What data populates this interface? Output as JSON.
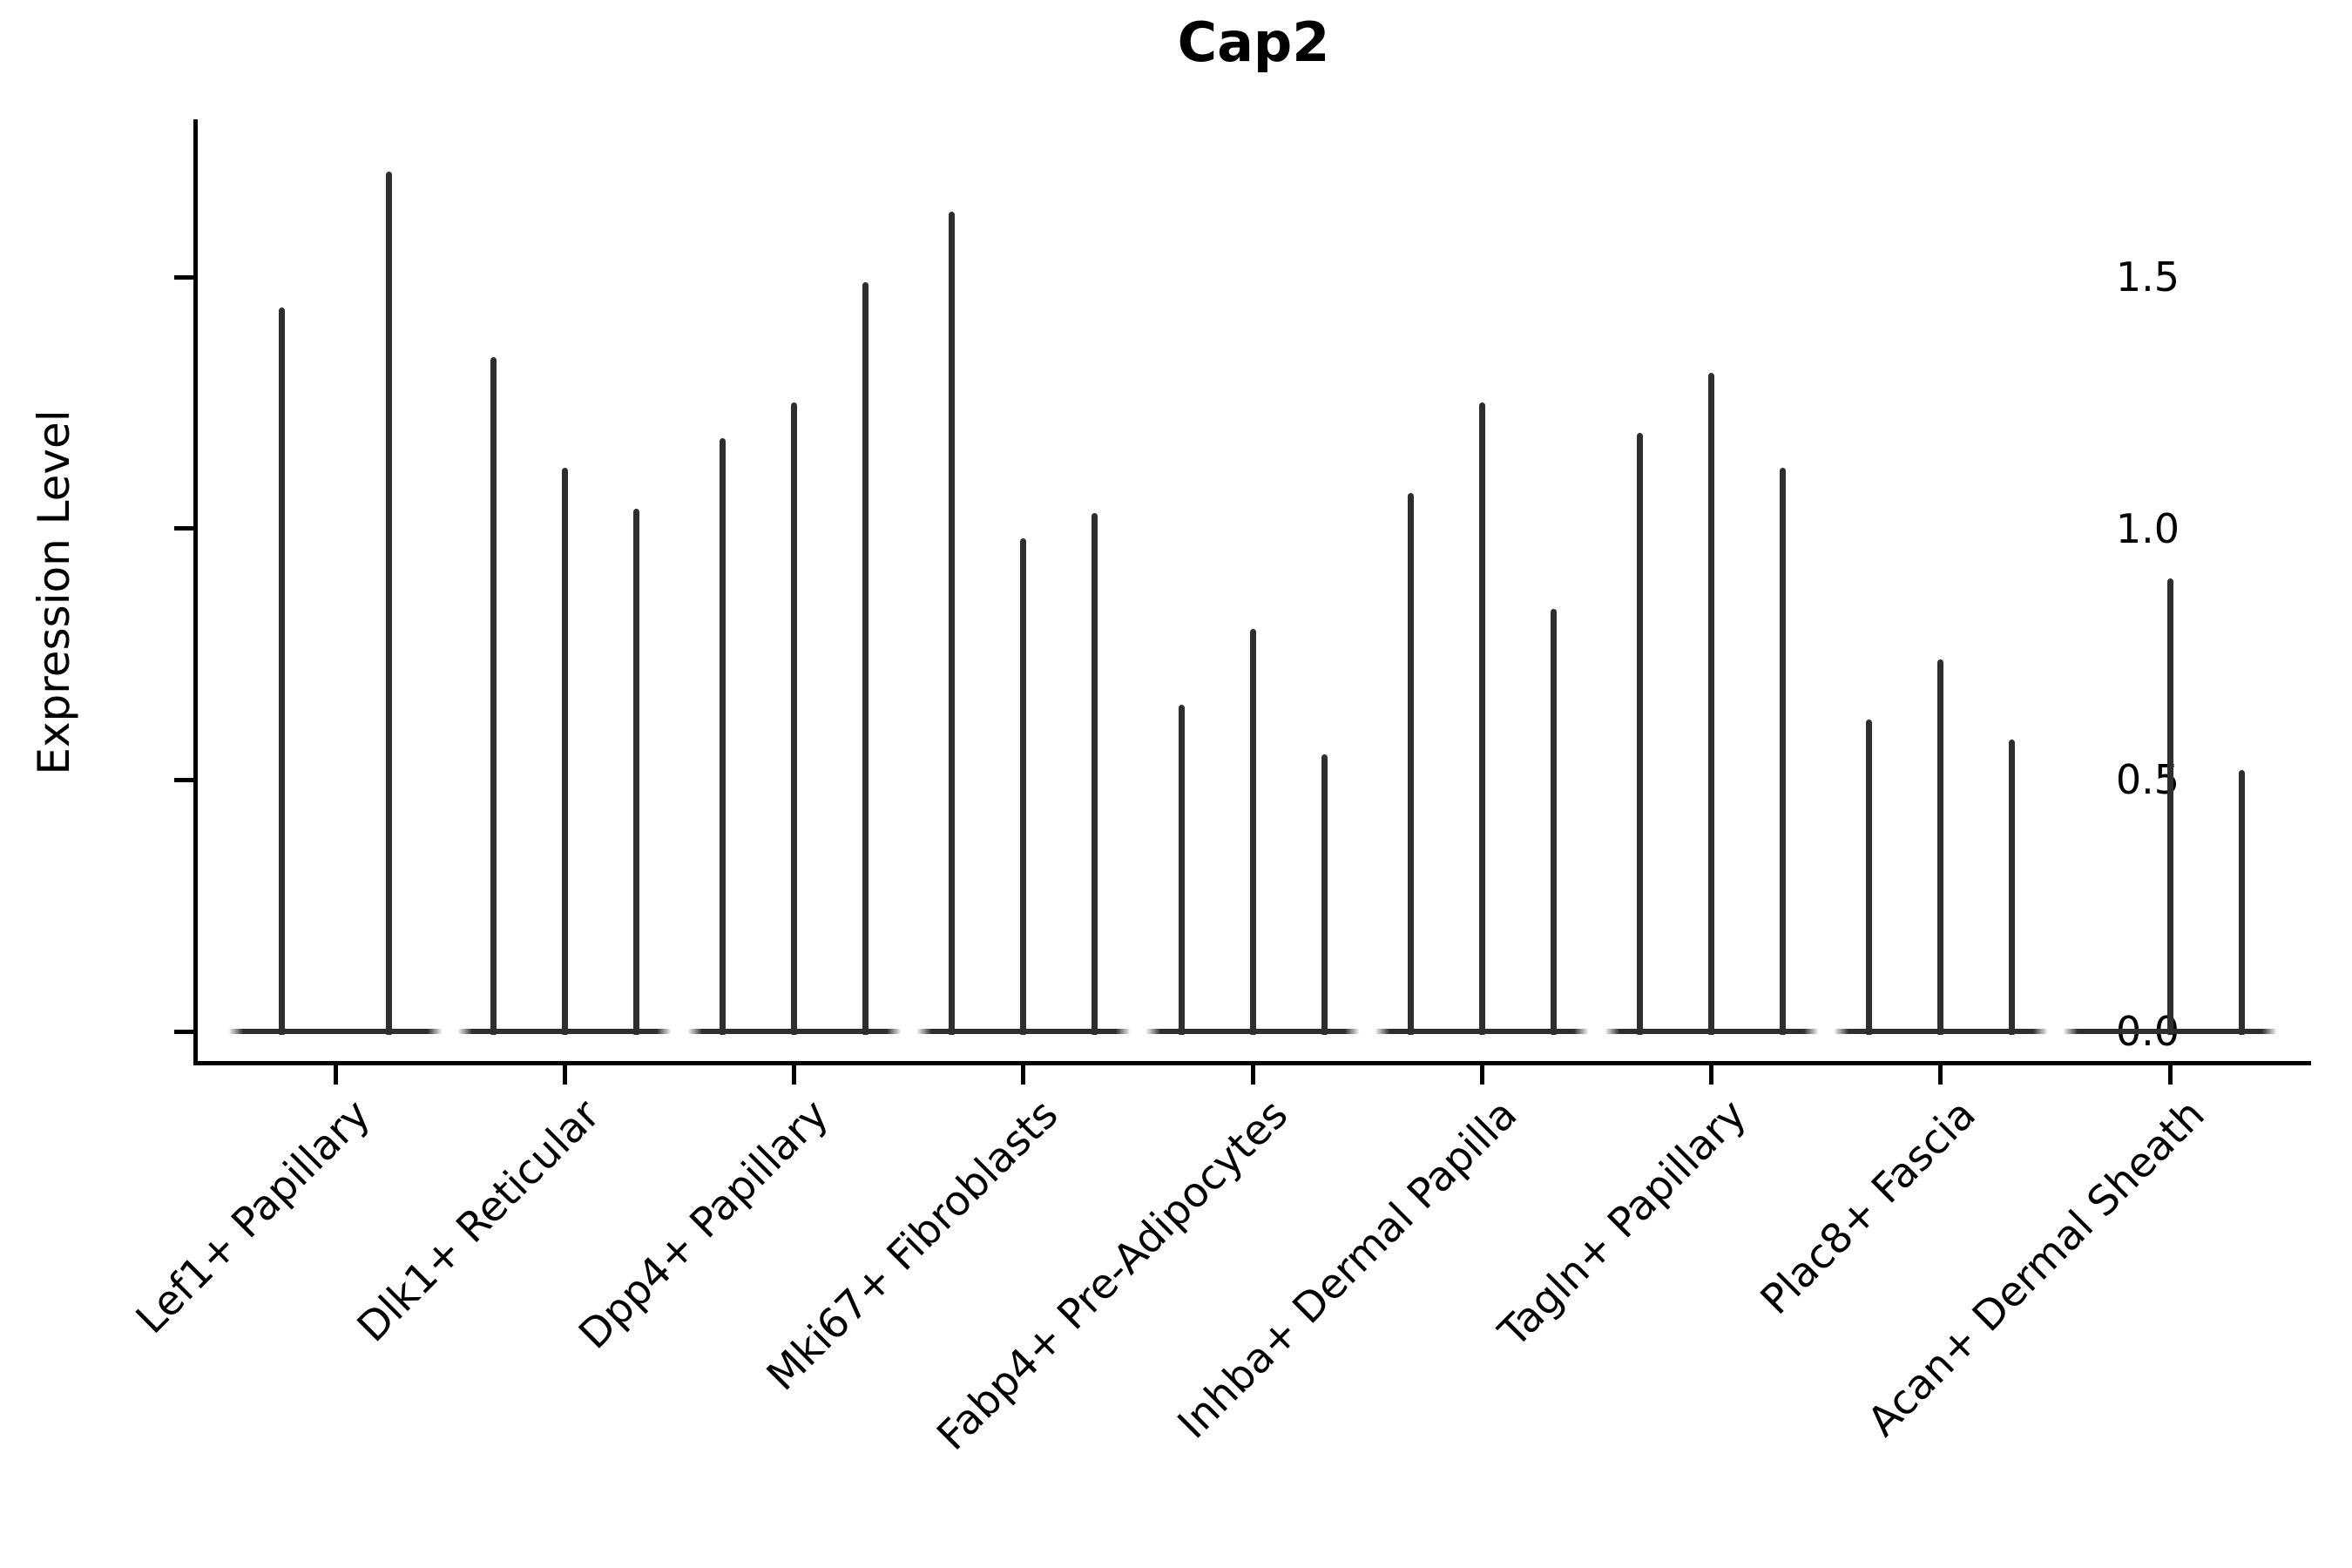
{
  "title": "Cap2",
  "y_axis": {
    "label": "Expression Level",
    "tick_labels": [
      "0.0",
      "0.5",
      "1.0",
      "1.5"
    ]
  },
  "colors": {
    "violin": "#2e2e2e",
    "axis": "#000000",
    "text": "#000000"
  },
  "chart_data": {
    "type": "violin",
    "title": "Cap2",
    "xlabel": "",
    "ylabel": "Expression Level",
    "ylim": [
      -0.06,
      1.81
    ],
    "yticks": [
      0,
      0.5,
      1.0,
      1.5
    ],
    "grid": false,
    "legend": null,
    "categories": [
      "Lef1+ Papillary",
      "Dlk1+ Reticular",
      "Dpp4+ Papillary",
      "Mki67+ Fibroblasts",
      "Fabp4+ Pre-Adipocytes",
      "Inhba+ Dermal Papilla",
      "Tagln+ Papillary",
      "Plac8+ Fascia",
      "Acan+ Dermal Sheath"
    ],
    "series": [
      {
        "category": "Lef1+ Papillary",
        "violin_max_expression": [
          1.44,
          1.71
        ]
      },
      {
        "category": "Dlk1+ Reticular",
        "violin_max_expression": [
          1.34,
          1.12,
          1.04
        ]
      },
      {
        "category": "Dpp4+ Papillary",
        "violin_max_expression": [
          1.18,
          1.25,
          1.49
        ]
      },
      {
        "category": "Mki67+ Fibroblasts",
        "violin_max_expression": [
          1.63,
          0.98,
          1.03
        ]
      },
      {
        "category": "Fabp4+ Pre-Adipocytes",
        "violin_max_expression": [
          0.65,
          0.8,
          0.55
        ]
      },
      {
        "category": "Inhba+ Dermal Papilla",
        "violin_max_expression": [
          1.07,
          1.25,
          0.84
        ]
      },
      {
        "category": "Tagln+ Papillary",
        "violin_max_expression": [
          1.19,
          1.31,
          1.12
        ]
      },
      {
        "category": "Plac8+ Fascia",
        "violin_max_expression": [
          0.62,
          0.74,
          0.58
        ]
      },
      {
        "category": "Acan+ Dermal Sheath",
        "violin_max_expression": [
          0.0,
          0.9,
          0.52
        ]
      }
    ],
    "description": "Violin plot of Cap2 expression per fibroblast subtype; each violin collapses to a flat base at 0 with a thin tail reaching the listed maximum expression value."
  }
}
